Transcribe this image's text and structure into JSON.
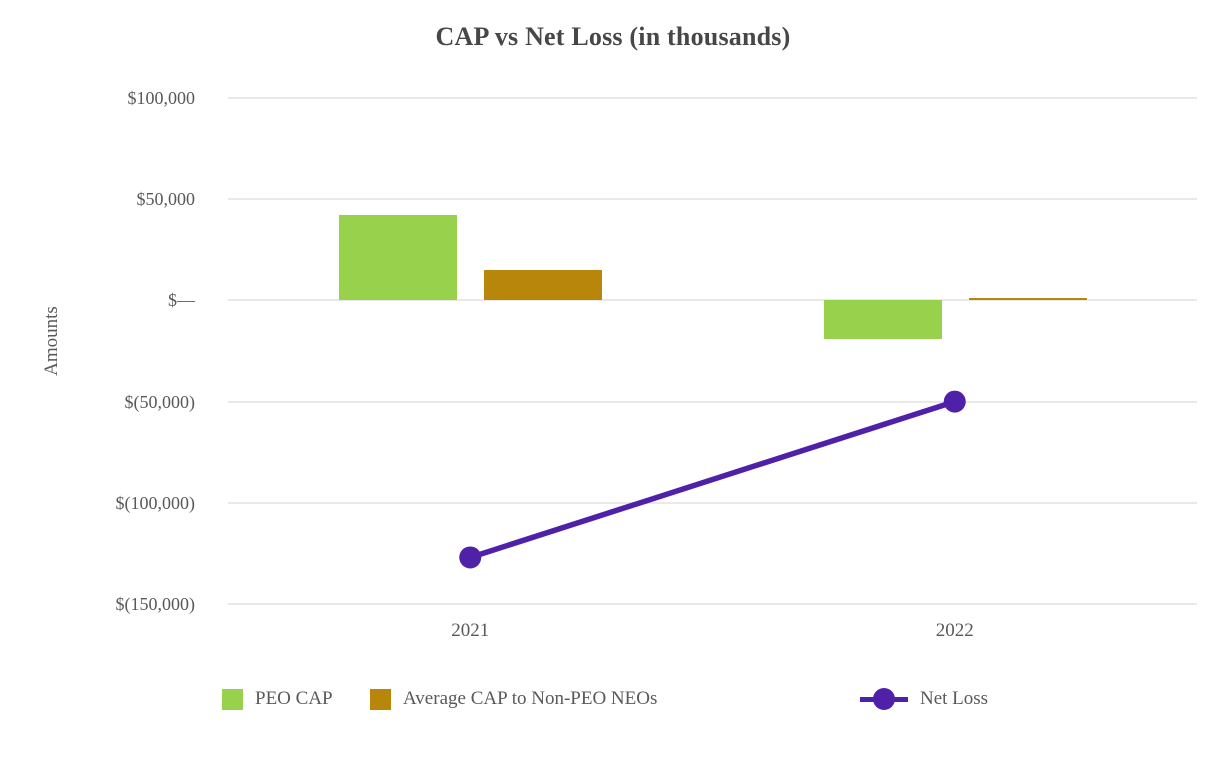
{
  "chart_data": {
    "type": "combo",
    "title": "CAP vs Net Loss (in thousands)",
    "ylabel": "Amounts",
    "xlabel": "",
    "categories": [
      "2021",
      "2022"
    ],
    "series": [
      {
        "name": "PEO CAP",
        "type": "bar",
        "color": "#98d24c",
        "values": [
          42000,
          -19000
        ]
      },
      {
        "name": "Average CAP to Non-PEO NEOs",
        "type": "bar",
        "color": "#b8860b",
        "values": [
          15000,
          1000
        ]
      },
      {
        "name": "Net Loss",
        "type": "line",
        "color": "#4e21a8",
        "values": [
          -127000,
          -50000
        ]
      }
    ],
    "ylim": [
      -150000,
      100000
    ],
    "yticks": [
      {
        "value": 100000,
        "label": "$100,000"
      },
      {
        "value": 50000,
        "label": "$50,000"
      },
      {
        "value": 0,
        "label": "$—"
      },
      {
        "value": -50000,
        "label": "$(50,000)"
      },
      {
        "value": -100000,
        "label": "$(100,000)"
      },
      {
        "value": -150000,
        "label": "$(150,000)"
      }
    ],
    "grid": true,
    "gridline_color": "#e9e9e9",
    "legend_position": "bottom"
  }
}
